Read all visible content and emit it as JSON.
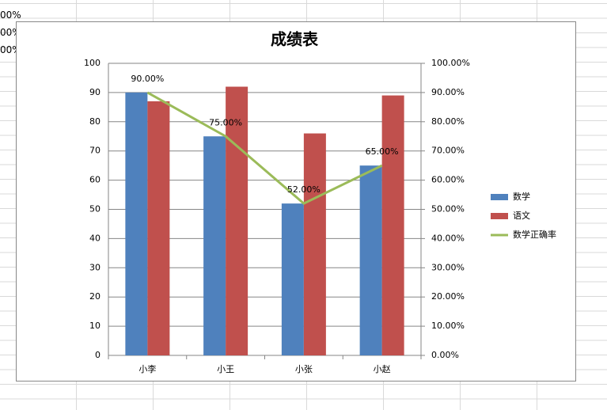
{
  "sheet_fragments": [
    "00%",
    "00%",
    "00%"
  ],
  "chart_data": {
    "type": "bar-line",
    "title": "成绩表",
    "categories": [
      "小李",
      "小王",
      "小张",
      "小赵"
    ],
    "series": [
      {
        "name": "数学",
        "type": "bar",
        "color": "#4f81bd",
        "values": [
          90,
          75,
          52,
          65
        ]
      },
      {
        "name": "语文",
        "type": "bar",
        "color": "#c0504d",
        "values": [
          87,
          92,
          76,
          89
        ]
      },
      {
        "name": "数学正确率",
        "type": "line",
        "axis": "y2",
        "color": "#9bbb59",
        "values": [
          90,
          75,
          52,
          65
        ],
        "value_labels": [
          "90.00%",
          "75.00%",
          "52.00%",
          "65.00%"
        ]
      }
    ],
    "ylim": [
      0,
      100
    ],
    "yticks": [
      0,
      10,
      20,
      30,
      40,
      50,
      60,
      70,
      80,
      90,
      100
    ],
    "y2lim": [
      0,
      100
    ],
    "y2ticks": [
      {
        "value": 0,
        "label": "0.00%"
      },
      {
        "value": 10,
        "label": "10.00%"
      },
      {
        "value": 20,
        "label": "20.00%"
      },
      {
        "value": 30,
        "label": "30.00%"
      },
      {
        "value": 40,
        "label": "40.00%"
      },
      {
        "value": 50,
        "label": "50.00%"
      },
      {
        "value": 60,
        "label": "60.00%"
      },
      {
        "value": 70,
        "label": "70.00%"
      },
      {
        "value": 80,
        "label": "80.00%"
      },
      {
        "value": 90,
        "label": "90.00%"
      },
      {
        "value": 100,
        "label": "100.00%"
      }
    ],
    "grid": true,
    "legend": "right"
  }
}
